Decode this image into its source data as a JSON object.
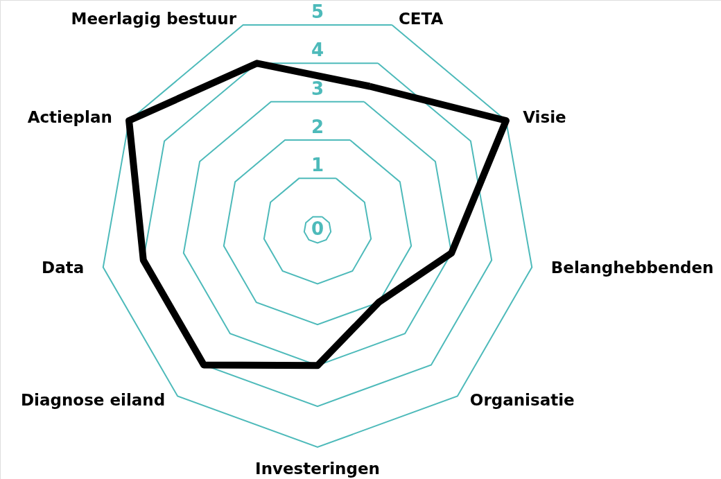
{
  "chart_data": {
    "type": "radar",
    "categories": [
      "CETA",
      "Visie",
      "Belanghebbenden",
      "Organisatie",
      "Investeringen",
      "Diagnose eiland",
      "Data",
      "Actieplan",
      "Meerlagig bestuur"
    ],
    "series": [
      {
        "color": "#000000",
        "values": [
          3.4,
          5,
          3,
          2,
          3,
          4,
          4,
          5,
          4
        ]
      }
    ],
    "ylim": [
      -0.33,
      5
    ],
    "yticks": [
      0,
      1,
      2,
      3,
      4,
      5
    ],
    "grid": true,
    "line_style": "solid"
  }
}
